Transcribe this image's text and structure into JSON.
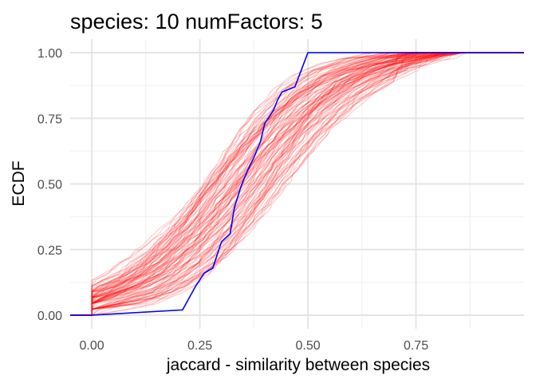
{
  "chart_data": {
    "type": "line",
    "title": "species:  10  numFactors:  5",
    "xlabel": "jaccard - similarity between species",
    "ylabel": "ECDF",
    "xlim": [
      -0.05,
      1.0
    ],
    "ylim": [
      0,
      1
    ],
    "x_ticks": [
      0.0,
      0.25,
      0.5,
      0.75
    ],
    "x_tick_labels": [
      "0.00",
      "0.25",
      "0.50",
      "0.75"
    ],
    "y_ticks": [
      0.0,
      0.25,
      0.5,
      0.75,
      1.0
    ],
    "y_tick_labels": [
      "0.00",
      "0.25",
      "0.50",
      "0.75",
      "1.00"
    ],
    "grid": true,
    "legend": "none",
    "background_series": {
      "count": 100,
      "color": "#ff0000",
      "opacity": 0.2,
      "step_points": 45,
      "center_range": [
        0.26,
        0.46
      ],
      "width_range": [
        0.18,
        0.32
      ],
      "x_min": 0.0,
      "x_max": 0.87
    },
    "series": [
      {
        "color": "#0000ff",
        "x": [
          -0.05,
          0.0,
          0.21,
          0.24,
          0.26,
          0.28,
          0.3,
          0.32,
          0.33,
          0.345,
          0.36,
          0.375,
          0.39,
          0.4,
          0.42,
          0.43,
          0.44,
          0.47,
          0.5,
          1.0
        ],
        "y": [
          0.0,
          0.0,
          0.02,
          0.11,
          0.16,
          0.18,
          0.28,
          0.31,
          0.41,
          0.49,
          0.55,
          0.6,
          0.66,
          0.73,
          0.78,
          0.82,
          0.85,
          0.87,
          1.0,
          1.0
        ]
      }
    ]
  }
}
